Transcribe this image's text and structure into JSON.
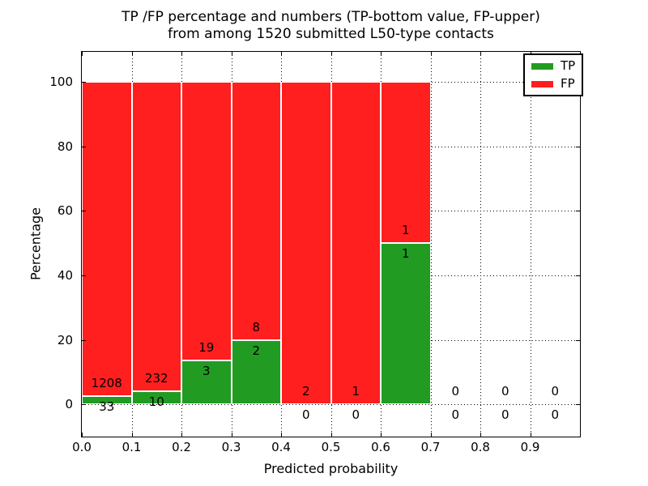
{
  "chart_data": {
    "type": "bar",
    "stacked": true,
    "title_line1": "TP /FP percentage and numbers (TP-bottom value, FP-upper)",
    "title_line2": "from among 1520 submitted L50-type contacts",
    "xlabel": "Predicted probability",
    "ylabel": "Percentage",
    "total_submitted": 1520,
    "annotation_note": "TP count printed below top of green segment, FP count printed above it; bars show TP/FP as percent of each bin totaling 100%",
    "categories": [
      "0.0-0.1",
      "0.1-0.2",
      "0.2-0.3",
      "0.3-0.4",
      "0.4-0.5",
      "0.5-0.6",
      "0.6-0.7",
      "0.7-0.8",
      "0.8-0.9",
      "0.9-1.0"
    ],
    "x_tick_labels": [
      "0.0",
      "0.1",
      "0.2",
      "0.3",
      "0.4",
      "0.5",
      "0.6",
      "0.7",
      "0.8",
      "0.9"
    ],
    "y_tick_values": [
      0,
      20,
      40,
      60,
      80,
      100
    ],
    "xlim": [
      0.0,
      1.0
    ],
    "ylim": [
      -10.0,
      109.25
    ],
    "bin_width": 0.1,
    "grid": "dotted",
    "legend_position": "upper right",
    "series": [
      {
        "name": "TP",
        "color": "#229b22",
        "values": [
          33,
          10,
          3,
          2,
          0,
          0,
          1,
          0,
          0,
          0
        ]
      },
      {
        "name": "FP",
        "color": "#ff1f1f",
        "values": [
          1208,
          232,
          19,
          8,
          2,
          1,
          1,
          0,
          0,
          0
        ]
      }
    ]
  }
}
